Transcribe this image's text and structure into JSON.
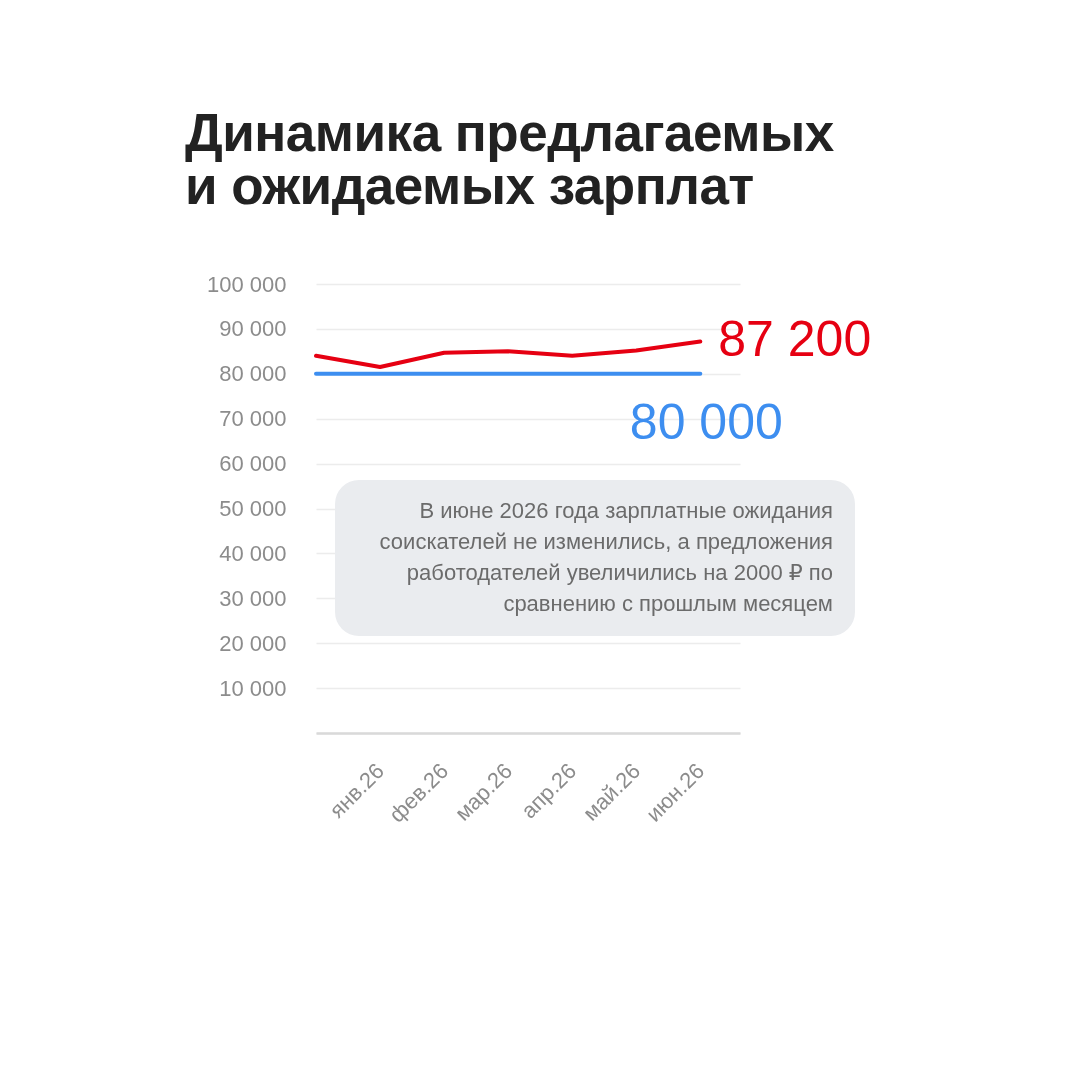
{
  "chart_data": {
    "type": "line",
    "title": "Динамика предлагаемых и ожидаемых зарплат",
    "categories": [
      null,
      "янв.26",
      "фев.26",
      "мар.26",
      "апр.26",
      "май.26",
      "июн.26"
    ],
    "series": [
      {
        "color": "#e60012",
        "values": [
          84000,
          81500,
          84700,
          85000,
          84000,
          85200,
          87200
        ],
        "value_labels": [
          null,
          null,
          null,
          null,
          null,
          null,
          "87 200"
        ]
      },
      {
        "color": "#3d8ef0",
        "values": [
          80000,
          80000,
          80000,
          80000,
          80000,
          80000,
          80000
        ],
        "value_labels": [
          null,
          null,
          null,
          null,
          null,
          null,
          "80 000"
        ]
      }
    ],
    "ylim": [
      0,
      100000
    ],
    "yticks": [
      {
        "value": 0,
        "label": null
      },
      {
        "value": 10000,
        "label": "10 000"
      },
      {
        "value": 20000,
        "label": "20 000"
      },
      {
        "value": 30000,
        "label": "30 000"
      },
      {
        "value": 40000,
        "label": "40 000"
      },
      {
        "value": 50000,
        "label": "50 000"
      },
      {
        "value": 60000,
        "label": "60 000"
      },
      {
        "value": 70000,
        "label": "70 000"
      },
      {
        "value": 80000,
        "label": "80 000"
      },
      {
        "value": 90000,
        "label": "90 000"
      },
      {
        "value": 100000,
        "label": "100 000"
      }
    ],
    "grid": "y",
    "annotations": [
      "В июне 2026 года зарплатные ожидания соискателей не изменились, а предложения работодателей увеличились на 2000 ₽ по сравнению с прошлым месяцем"
    ]
  }
}
